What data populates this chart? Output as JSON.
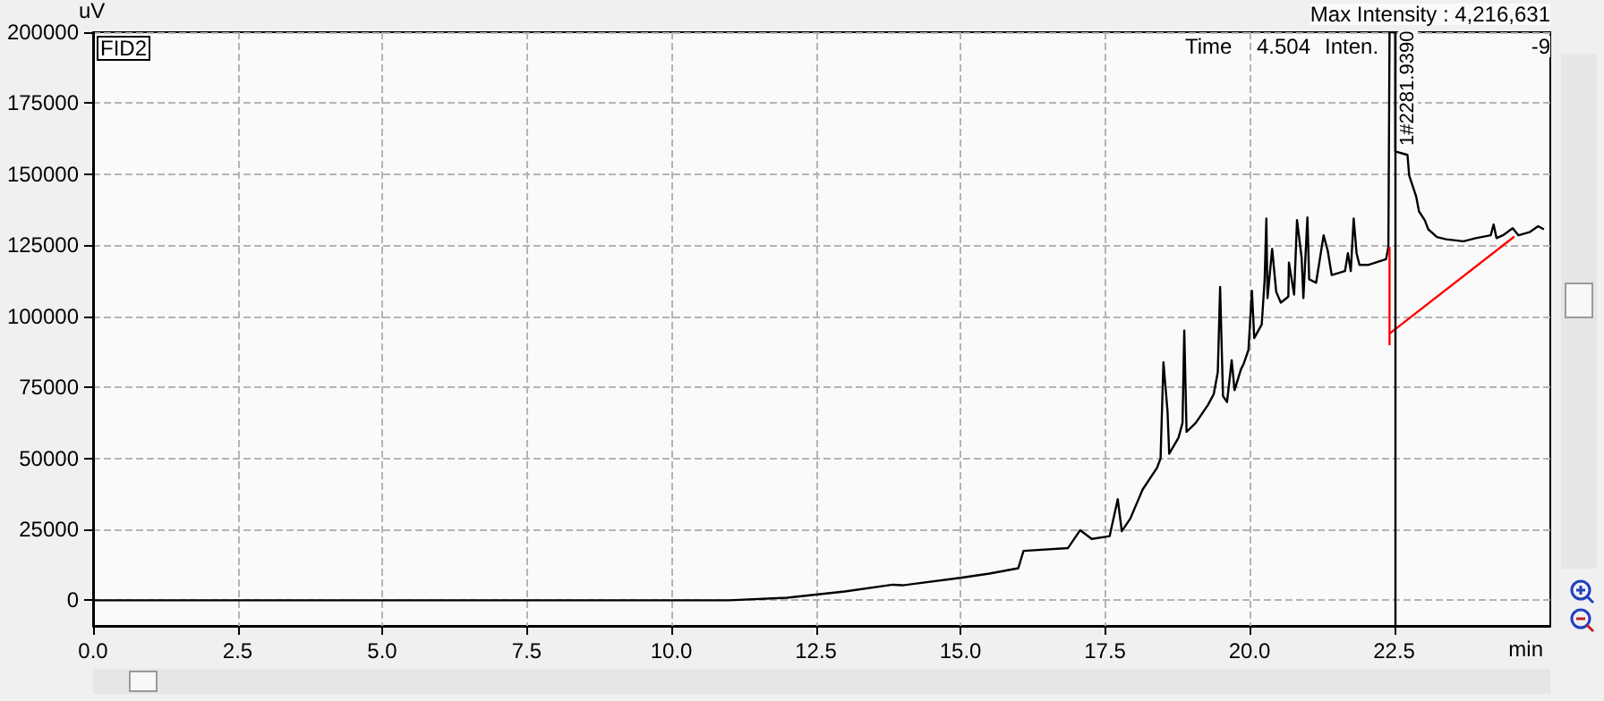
{
  "chart_data": {
    "type": "line",
    "xlabel": "min",
    "ylabel": "uV",
    "annotations": [
      "FID2",
      "Max Intensity : 4,216,631",
      "Time",
      "4.504",
      "Inten.",
      "-9",
      {
        "text": "1#2281.9390",
        "x": 22.57,
        "y": 160000
      }
    ],
    "xlim": [
      0,
      25.2
    ],
    "ylim": [
      -9000,
      200000
    ],
    "xticks": [
      {
        "value": 0,
        "label": "0.0"
      },
      {
        "value": 2.5,
        "label": "2.5"
      },
      {
        "value": 5,
        "label": "5.0"
      },
      {
        "value": 7.5,
        "label": "7.5"
      },
      {
        "value": 10,
        "label": "10.0"
      },
      {
        "value": 12.5,
        "label": "12.5"
      },
      {
        "value": 15,
        "label": "15.0"
      },
      {
        "value": 17.5,
        "label": "17.5"
      },
      {
        "value": 20,
        "label": "20.0"
      },
      {
        "value": 22.5,
        "label": "22.5"
      }
    ],
    "yticks": [
      0,
      25000,
      50000,
      75000,
      100000,
      125000,
      150000,
      175000,
      200000
    ],
    "grid": true,
    "line_style": "solid",
    "ref_lines": [
      {
        "axis": "x",
        "value": 22.52,
        "color": "#000000"
      }
    ],
    "series": [
      {
        "color": "#000000",
        "x": [
          0,
          11.0,
          12.0,
          13.0,
          13.83,
          14.0,
          15.0,
          15.5,
          16.0,
          16.09,
          16.86,
          17.07,
          17.27,
          17.58,
          17.72,
          17.79,
          17.94,
          18.15,
          18.4,
          18.46,
          18.51,
          18.58,
          18.61,
          18.77,
          18.84,
          18.87,
          18.91,
          19.07,
          19.28,
          19.38,
          19.45,
          19.49,
          19.54,
          19.61,
          19.69,
          19.74,
          19.85,
          19.9,
          19.98,
          20.04,
          20.08,
          20.21,
          20.26,
          20.29,
          20.31,
          20.39,
          20.46,
          20.54,
          20.67,
          20.68,
          20.77,
          20.82,
          20.9,
          20.93,
          21.0,
          21.03,
          21.15,
          21.28,
          21.35,
          21.42,
          21.65,
          21.7,
          21.75,
          21.8,
          21.85,
          21.9,
          22.06,
          22.36,
          22.4,
          22.42,
          22.52,
          22.52,
          22.73,
          22.76,
          22.88,
          22.93,
          23.03,
          23.09,
          23.24,
          23.4,
          23.7,
          23.91,
          24.17,
          24.22,
          24.27,
          24.38,
          24.55,
          24.65,
          24.84,
          24.99,
          25.09
        ],
        "values": [
          0,
          0,
          900,
          3100,
          5500,
          5300,
          7900,
          9400,
          11300,
          17400,
          18400,
          24700,
          21600,
          22600,
          35600,
          24300,
          28900,
          39000,
          46700,
          49900,
          83800,
          66700,
          51600,
          57200,
          62500,
          95000,
          59300,
          62500,
          68800,
          72600,
          80300,
          110300,
          71900,
          69800,
          84500,
          74000,
          81300,
          83400,
          88100,
          109000,
          92300,
          97100,
          112800,
          134400,
          106400,
          123700,
          108600,
          104800,
          106900,
          118900,
          107600,
          133800,
          120600,
          106400,
          134800,
          113000,
          111800,
          128500,
          123200,
          114500,
          115900,
          122200,
          115900,
          134400,
          122200,
          118100,
          118100,
          120100,
          124400,
          200000,
          200000,
          158000,
          156800,
          149500,
          142200,
          136900,
          133800,
          130600,
          127900,
          127100,
          126400,
          127500,
          128500,
          132300,
          127500,
          128500,
          131000,
          128500,
          129600,
          131700,
          130600
        ]
      },
      {
        "color": "#ff0000",
        "x": [
          22.42,
          22.42
        ],
        "values": [
          124400,
          89800
        ]
      },
      {
        "color": "#ff0000",
        "x": [
          22.42,
          24.58
        ],
        "values": [
          93900,
          128100
        ]
      }
    ]
  }
}
